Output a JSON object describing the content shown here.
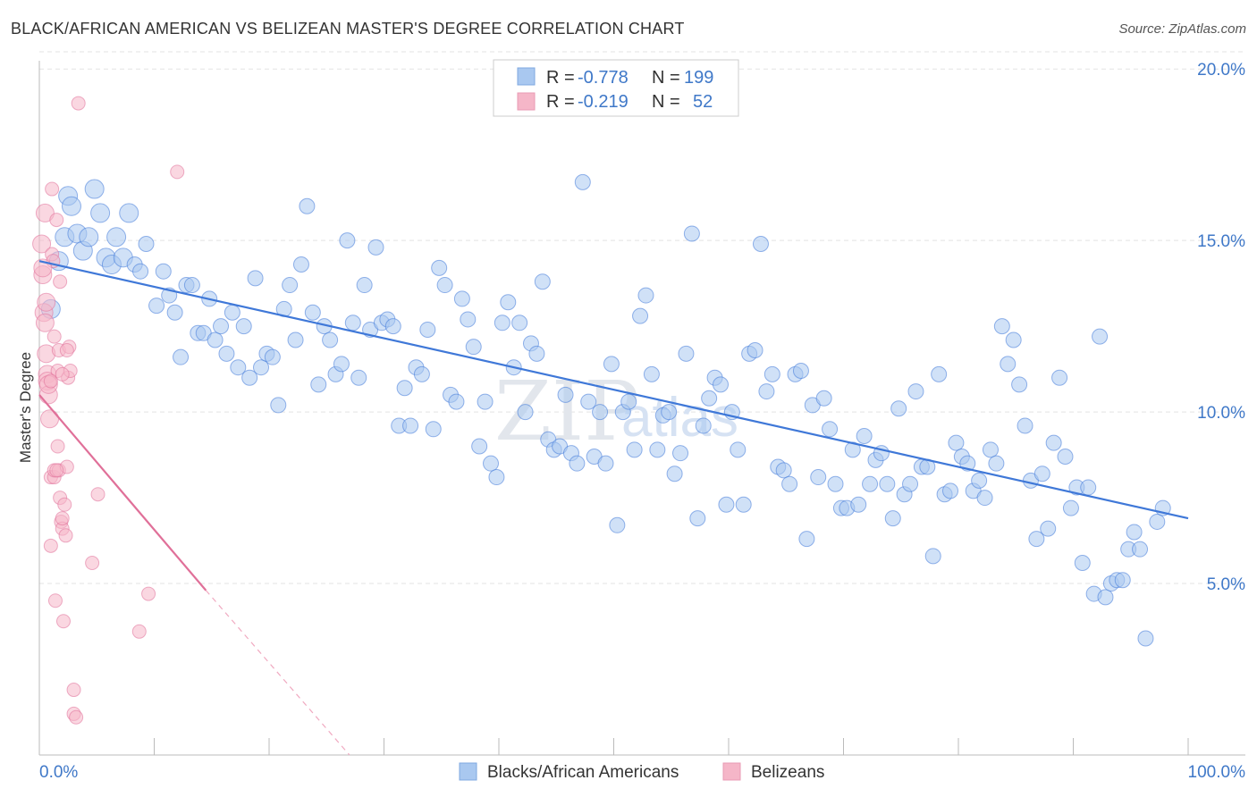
{
  "header": {
    "title": "BLACK/AFRICAN AMERICAN VS BELIZEAN MASTER'S DEGREE CORRELATION CHART",
    "source": "Source: ZipAtlas.com"
  },
  "watermark": {
    "zip": "ZIP",
    "atlas": "atlas"
  },
  "legend": {
    "rows": [
      {
        "r_label": "R =",
        "r_value": "-0.778",
        "n_label": "N =",
        "n_value": "199",
        "color": "#a9c8f0"
      },
      {
        "r_label": "R =",
        "r_value": "-0.219",
        "n_label": "N =",
        "n_value": "52",
        "color": "#f5b6c8"
      }
    ]
  },
  "bottom_legend": {
    "items": [
      {
        "label": "Blacks/African Americans",
        "color": "#a9c8f0"
      },
      {
        "label": "Belizeans",
        "color": "#f5b6c8"
      }
    ]
  },
  "chart_data": {
    "type": "scatter",
    "title": "BLACK/AFRICAN AMERICAN VS BELIZEAN MASTER'S DEGREE CORRELATION CHART",
    "xlabel": "",
    "ylabel": "Master's Degree",
    "xlim": [
      0,
      100
    ],
    "ylim": [
      0,
      20.5
    ],
    "x_ticks": [
      "0.0%",
      "100.0%"
    ],
    "y_ticks": [
      {
        "value": 5,
        "label": "5.0%"
      },
      {
        "value": 10,
        "label": "10.0%"
      },
      {
        "value": 15,
        "label": "15.0%"
      },
      {
        "value": 20,
        "label": "20.0%"
      }
    ],
    "grid": true,
    "legend_position": "top-center",
    "series": [
      {
        "name": "Blacks/African Americans",
        "color": "#3f78d8",
        "fill": "#a9c8f0",
        "trend": {
          "x": [
            0,
            100
          ],
          "y": [
            14.4,
            6.9
          ],
          "style": "solid"
        },
        "points": [
          [
            1,
            13.0
          ],
          [
            1.7,
            14.4
          ],
          [
            2.2,
            15.1
          ],
          [
            2.5,
            16.3
          ],
          [
            2.8,
            16.0
          ],
          [
            3.3,
            15.2
          ],
          [
            3.8,
            14.7
          ],
          [
            4.3,
            15.1
          ],
          [
            4.8,
            16.5
          ],
          [
            5.3,
            15.8
          ],
          [
            5.8,
            14.5
          ],
          [
            6.3,
            14.3
          ],
          [
            6.7,
            15.1
          ],
          [
            7.3,
            14.5
          ],
          [
            7.8,
            15.8
          ],
          [
            8.3,
            14.3
          ],
          [
            8.8,
            14.1
          ],
          [
            9.3,
            14.9
          ],
          [
            10.2,
            13.1
          ],
          [
            10.8,
            14.1
          ],
          [
            11.3,
            13.4
          ],
          [
            11.8,
            12.9
          ],
          [
            12.3,
            11.6
          ],
          [
            12.8,
            13.7
          ],
          [
            13.3,
            13.7
          ],
          [
            13.8,
            12.3
          ],
          [
            14.3,
            12.3
          ],
          [
            14.8,
            13.3
          ],
          [
            15.3,
            12.1
          ],
          [
            15.8,
            12.5
          ],
          [
            16.3,
            11.7
          ],
          [
            16.8,
            12.9
          ],
          [
            17.3,
            11.3
          ],
          [
            17.8,
            12.5
          ],
          [
            18.3,
            11.0
          ],
          [
            18.8,
            13.9
          ],
          [
            19.3,
            11.3
          ],
          [
            19.8,
            11.7
          ],
          [
            20.3,
            11.6
          ],
          [
            20.8,
            10.2
          ],
          [
            21.3,
            13.0
          ],
          [
            21.8,
            13.7
          ],
          [
            22.3,
            12.1
          ],
          [
            22.8,
            14.3
          ],
          [
            23.3,
            16.0
          ],
          [
            23.8,
            12.9
          ],
          [
            24.3,
            10.8
          ],
          [
            24.8,
            12.5
          ],
          [
            25.3,
            12.1
          ],
          [
            25.8,
            11.1
          ],
          [
            26.3,
            11.4
          ],
          [
            26.8,
            15.0
          ],
          [
            27.3,
            12.6
          ],
          [
            27.8,
            11.0
          ],
          [
            28.3,
            13.7
          ],
          [
            28.8,
            12.4
          ],
          [
            29.3,
            14.8
          ],
          [
            29.8,
            12.6
          ],
          [
            30.3,
            12.7
          ],
          [
            30.8,
            12.5
          ],
          [
            31.3,
            9.6
          ],
          [
            31.8,
            10.7
          ],
          [
            32.3,
            9.6
          ],
          [
            32.8,
            11.3
          ],
          [
            33.3,
            11.1
          ],
          [
            33.8,
            12.4
          ],
          [
            34.3,
            9.5
          ],
          [
            34.8,
            14.2
          ],
          [
            35.3,
            13.7
          ],
          [
            35.8,
            10.5
          ],
          [
            36.3,
            10.3
          ],
          [
            36.8,
            13.3
          ],
          [
            37.3,
            12.7
          ],
          [
            37.8,
            11.9
          ],
          [
            38.3,
            9.0
          ],
          [
            38.8,
            10.3
          ],
          [
            39.3,
            8.5
          ],
          [
            39.8,
            8.1
          ],
          [
            40.3,
            12.6
          ],
          [
            40.8,
            13.2
          ],
          [
            41.3,
            11.3
          ],
          [
            41.8,
            12.6
          ],
          [
            42.3,
            10.0
          ],
          [
            42.8,
            12.0
          ],
          [
            43.3,
            11.7
          ],
          [
            43.8,
            13.8
          ],
          [
            44.3,
            9.2
          ],
          [
            44.8,
            8.9
          ],
          [
            45.3,
            9.0
          ],
          [
            45.8,
            10.5
          ],
          [
            46.3,
            8.8
          ],
          [
            46.8,
            8.5
          ],
          [
            47.3,
            16.7
          ],
          [
            47.8,
            10.3
          ],
          [
            48.3,
            8.7
          ],
          [
            48.8,
            10.0
          ],
          [
            49.3,
            8.5
          ],
          [
            49.8,
            11.4
          ],
          [
            50.3,
            6.7
          ],
          [
            50.8,
            10.0
          ],
          [
            51.3,
            10.3
          ],
          [
            51.8,
            8.9
          ],
          [
            52.3,
            12.8
          ],
          [
            52.8,
            13.4
          ],
          [
            53.3,
            11.1
          ],
          [
            53.8,
            8.9
          ],
          [
            54.3,
            9.9
          ],
          [
            54.8,
            10.0
          ],
          [
            55.3,
            8.2
          ],
          [
            55.8,
            8.8
          ],
          [
            56.3,
            11.7
          ],
          [
            56.8,
            15.2
          ],
          [
            57.3,
            6.9
          ],
          [
            57.8,
            9.6
          ],
          [
            58.3,
            10.4
          ],
          [
            58.8,
            11.0
          ],
          [
            59.3,
            10.8
          ],
          [
            59.8,
            7.3
          ],
          [
            60.3,
            10.0
          ],
          [
            60.8,
            8.9
          ],
          [
            61.3,
            7.3
          ],
          [
            61.8,
            11.7
          ],
          [
            62.3,
            11.8
          ],
          [
            62.8,
            14.9
          ],
          [
            63.3,
            10.6
          ],
          [
            63.8,
            11.1
          ],
          [
            64.3,
            8.4
          ],
          [
            64.8,
            8.3
          ],
          [
            65.3,
            7.9
          ],
          [
            65.8,
            11.1
          ],
          [
            66.3,
            11.2
          ],
          [
            66.8,
            6.3
          ],
          [
            67.3,
            10.2
          ],
          [
            67.8,
            8.1
          ],
          [
            68.3,
            10.4
          ],
          [
            68.8,
            9.5
          ],
          [
            69.3,
            7.9
          ],
          [
            69.8,
            7.2
          ],
          [
            70.3,
            7.2
          ],
          [
            70.8,
            8.9
          ],
          [
            71.3,
            7.3
          ],
          [
            71.8,
            9.3
          ],
          [
            72.3,
            7.9
          ],
          [
            72.8,
            8.6
          ],
          [
            73.3,
            8.8
          ],
          [
            73.8,
            7.9
          ],
          [
            74.3,
            6.9
          ],
          [
            74.8,
            10.1
          ],
          [
            75.3,
            7.6
          ],
          [
            75.8,
            7.9
          ],
          [
            76.3,
            10.6
          ],
          [
            76.8,
            8.4
          ],
          [
            77.3,
            8.4
          ],
          [
            77.8,
            5.8
          ],
          [
            78.3,
            11.1
          ],
          [
            78.8,
            7.6
          ],
          [
            79.3,
            7.7
          ],
          [
            79.8,
            9.1
          ],
          [
            80.3,
            8.7
          ],
          [
            80.8,
            8.5
          ],
          [
            81.3,
            7.7
          ],
          [
            81.8,
            8.0
          ],
          [
            82.3,
            7.5
          ],
          [
            82.8,
            8.9
          ],
          [
            83.3,
            8.5
          ],
          [
            83.8,
            12.5
          ],
          [
            84.3,
            11.4
          ],
          [
            84.8,
            12.1
          ],
          [
            85.3,
            10.8
          ],
          [
            85.8,
            9.6
          ],
          [
            86.3,
            8.0
          ],
          [
            86.8,
            6.3
          ],
          [
            87.3,
            8.2
          ],
          [
            87.8,
            6.6
          ],
          [
            88.3,
            9.1
          ],
          [
            88.8,
            11.0
          ],
          [
            89.3,
            8.7
          ],
          [
            89.8,
            7.2
          ],
          [
            90.3,
            7.8
          ],
          [
            90.8,
            5.6
          ],
          [
            91.3,
            7.8
          ],
          [
            91.8,
            4.7
          ],
          [
            92.3,
            12.2
          ],
          [
            92.8,
            4.6
          ],
          [
            93.3,
            5.0
          ],
          [
            93.8,
            5.1
          ],
          [
            94.3,
            5.1
          ],
          [
            94.8,
            6.0
          ],
          [
            95.3,
            6.5
          ],
          [
            95.8,
            6.0
          ],
          [
            96.3,
            3.4
          ],
          [
            97.3,
            6.8
          ],
          [
            97.8,
            7.2
          ]
        ]
      },
      {
        "name": "Belizeans",
        "color": "#e07099",
        "fill": "#f5b6c8",
        "trend": {
          "x": [
            0,
            14.5,
            27
          ],
          "y": [
            10.5,
            4.8,
            0
          ],
          "style": "solid-then-dashed"
        },
        "points": [
          [
            0.2,
            14.9
          ],
          [
            0.3,
            14.0
          ],
          [
            0.4,
            12.9
          ],
          [
            0.5,
            12.6
          ],
          [
            0.5,
            15.8
          ],
          [
            0.6,
            11.7
          ],
          [
            0.7,
            11.1
          ],
          [
            0.7,
            10.9
          ],
          [
            0.8,
            10.5
          ],
          [
            0.8,
            10.8
          ],
          [
            0.9,
            9.8
          ],
          [
            1.0,
            8.1
          ],
          [
            1.0,
            6.1
          ],
          [
            1.1,
            16.5
          ],
          [
            1.1,
            14.6
          ],
          [
            1.2,
            14.4
          ],
          [
            1.3,
            8.1
          ],
          [
            1.3,
            8.3
          ],
          [
            1.4,
            4.5
          ],
          [
            1.5,
            15.6
          ],
          [
            1.6,
            11.2
          ],
          [
            1.6,
            9.0
          ],
          [
            1.7,
            11.8
          ],
          [
            1.7,
            8.3
          ],
          [
            1.8,
            13.8
          ],
          [
            1.8,
            7.5
          ],
          [
            1.9,
            6.8
          ],
          [
            2.0,
            6.6
          ],
          [
            2.0,
            6.9
          ],
          [
            2.1,
            3.9
          ],
          [
            2.2,
            7.3
          ],
          [
            2.3,
            6.4
          ],
          [
            2.4,
            8.4
          ],
          [
            2.5,
            11.0
          ],
          [
            2.6,
            11.9
          ],
          [
            2.7,
            11.2
          ],
          [
            3.0,
            1.9
          ],
          [
            3.0,
            1.2
          ],
          [
            3.2,
            1.1
          ],
          [
            3.4,
            19.0
          ],
          [
            4.6,
            5.6
          ],
          [
            5.1,
            7.6
          ],
          [
            8.7,
            3.6
          ],
          [
            9.5,
            4.7
          ],
          [
            12.0,
            17.0
          ],
          [
            0.3,
            14.2
          ],
          [
            0.6,
            13.2
          ],
          [
            1.3,
            12.2
          ],
          [
            1.0,
            10.9
          ],
          [
            2.0,
            11.1
          ],
          [
            1.5,
            8.3
          ],
          [
            2.4,
            11.8
          ]
        ]
      }
    ]
  }
}
